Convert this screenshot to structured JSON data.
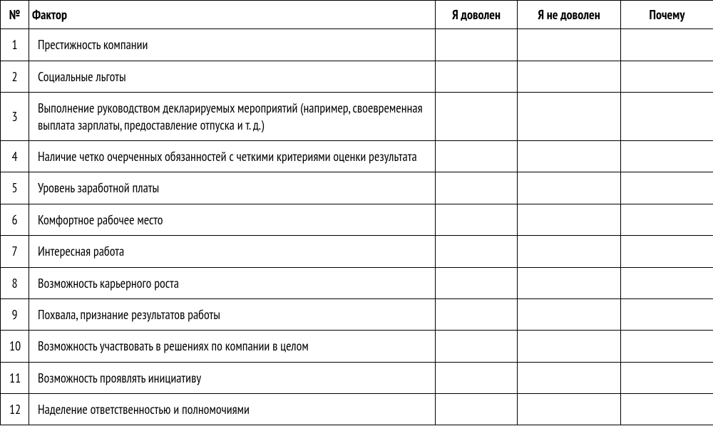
{
  "table": {
    "columns": [
      {
        "key": "num",
        "label": "№",
        "class": "col-num",
        "align": "center"
      },
      {
        "key": "factor",
        "label": "Фактор",
        "class": "col-factor",
        "align": "left"
      },
      {
        "key": "satisfied",
        "label": "Я доволен",
        "class": "col-satisfied",
        "align": "center"
      },
      {
        "key": "unsatisfied",
        "label": "Я не доволен",
        "class": "col-unsatisfied",
        "align": "center"
      },
      {
        "key": "why",
        "label": "Почему",
        "class": "col-why",
        "align": "center"
      }
    ],
    "rows": [
      {
        "num": "1",
        "factor": "Престижность компании",
        "satisfied": "",
        "unsatisfied": "",
        "why": ""
      },
      {
        "num": "2",
        "factor": "Социальные льготы",
        "satisfied": "",
        "unsatisfied": "",
        "why": ""
      },
      {
        "num": "3",
        "factor": "Выполнение руководством декларируемых мероприятий (например, своевременная выплата зарплаты, предоставление отпуска и т. д.)",
        "satisfied": "",
        "unsatisfied": "",
        "why": ""
      },
      {
        "num": "4",
        "factor": "Наличие четко очерченных обязанностей с четкими критериями оценки результата",
        "satisfied": "",
        "unsatisfied": "",
        "why": ""
      },
      {
        "num": "5",
        "factor": "Уровень заработной платы",
        "satisfied": "",
        "unsatisfied": "",
        "why": ""
      },
      {
        "num": "6",
        "factor": "Комфортное рабочее место",
        "satisfied": "",
        "unsatisfied": "",
        "why": ""
      },
      {
        "num": "7",
        "factor": "Интересная работа",
        "satisfied": "",
        "unsatisfied": "",
        "why": ""
      },
      {
        "num": "8",
        "factor": "Возможность карьерного роста",
        "satisfied": "",
        "unsatisfied": "",
        "why": ""
      },
      {
        "num": "9",
        "factor": "Похвала, признание результатов работы",
        "satisfied": "",
        "unsatisfied": "",
        "why": ""
      },
      {
        "num": "10",
        "factor": "Возможность участвовать в решениях по компании в целом",
        "satisfied": "",
        "unsatisfied": "",
        "why": ""
      },
      {
        "num": "11",
        "factor": "Возможность проявлять инициативу",
        "satisfied": "",
        "unsatisfied": "",
        "why": ""
      },
      {
        "num": "12",
        "factor": "Наделение ответственностью и полномочиями",
        "satisfied": "",
        "unsatisfied": "",
        "why": ""
      }
    ],
    "border_color": "#000000",
    "background_color": "#ffffff",
    "text_color": "#000000",
    "font_size": 18,
    "header_font_weight": "bold"
  }
}
